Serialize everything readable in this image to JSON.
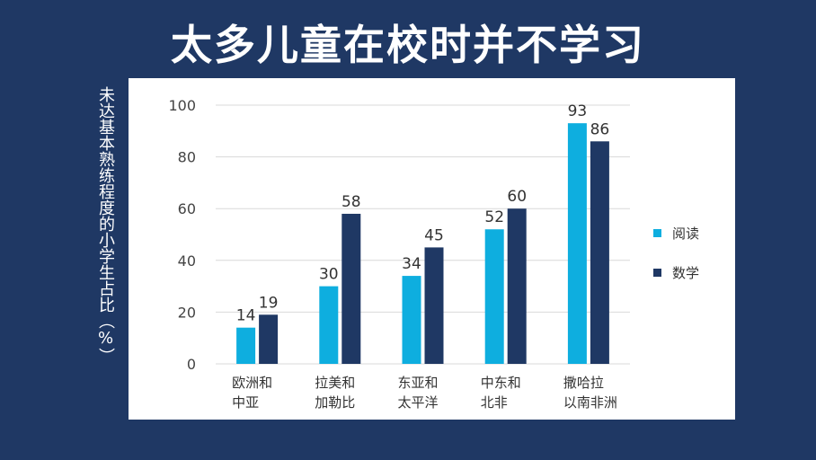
{
  "title": "太多儿童在校时并不学习",
  "chart_data": {
    "type": "bar",
    "ylabel": "未达基本熟练程度的小学生占比（%）",
    "ylim": [
      0,
      100
    ],
    "yticks": [
      0,
      20,
      40,
      60,
      80,
      100
    ],
    "grid": true,
    "legend_position": "right",
    "categories": [
      [
        "欧洲和",
        "中亚"
      ],
      [
        "拉美和",
        "加勒比"
      ],
      [
        "东亚和",
        "太平洋"
      ],
      [
        "中东和",
        "北非"
      ],
      [
        "撒哈拉",
        "以南非洲"
      ]
    ],
    "series": [
      {
        "name": "阅读",
        "color": "#0eaedf",
        "values": [
          14,
          30,
          34,
          52,
          93
        ]
      },
      {
        "name": "数学",
        "color": "#1f3864",
        "values": [
          19,
          58,
          45,
          60,
          86
        ]
      }
    ]
  }
}
